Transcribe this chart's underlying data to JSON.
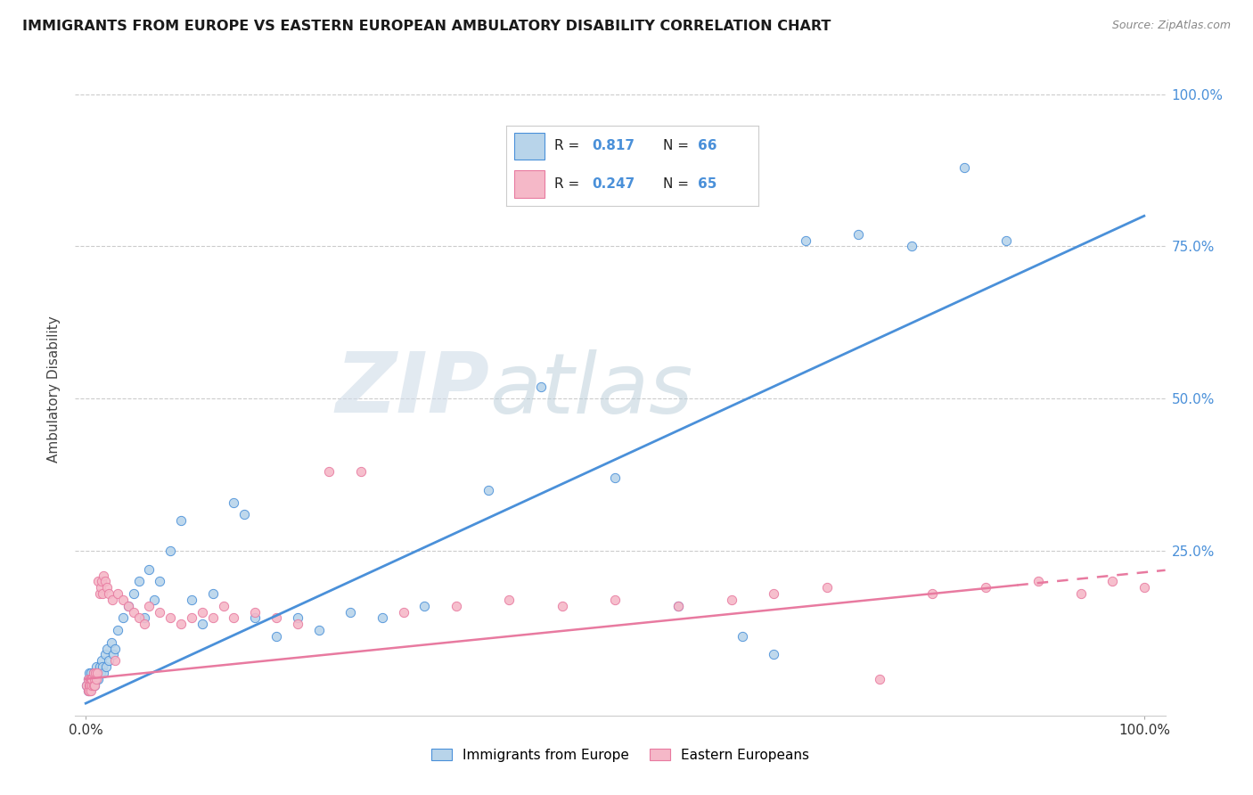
{
  "title": "IMMIGRANTS FROM EUROPE VS EASTERN EUROPEAN AMBULATORY DISABILITY CORRELATION CHART",
  "source": "Source: ZipAtlas.com",
  "ylabel": "Ambulatory Disability",
  "legend_label1": "Immigrants from Europe",
  "legend_label2": "Eastern Europeans",
  "r1": "0.817",
  "n1": "66",
  "r2": "0.247",
  "n2": "65",
  "color_blue": "#b8d4ea",
  "color_pink": "#f5b8c8",
  "line_color_blue": "#4a90d9",
  "line_color_pink": "#e87aa0",
  "text_color_blue": "#4a90d9",
  "watermark_zip": "ZIP",
  "watermark_atlas": "atlas",
  "blue_slope": 0.8,
  "blue_intercept": 0.0,
  "pink_slope": 0.175,
  "pink_intercept": 0.04,
  "blue_points_x": [
    0.001,
    0.002,
    0.002,
    0.003,
    0.003,
    0.004,
    0.004,
    0.005,
    0.005,
    0.006,
    0.006,
    0.007,
    0.007,
    0.008,
    0.008,
    0.009,
    0.01,
    0.01,
    0.011,
    0.012,
    0.013,
    0.014,
    0.015,
    0.016,
    0.017,
    0.018,
    0.019,
    0.02,
    0.022,
    0.024,
    0.026,
    0.028,
    0.03,
    0.035,
    0.04,
    0.045,
    0.05,
    0.055,
    0.06,
    0.065,
    0.07,
    0.08,
    0.09,
    0.1,
    0.11,
    0.12,
    0.14,
    0.15,
    0.16,
    0.18,
    0.2,
    0.22,
    0.25,
    0.28,
    0.32,
    0.38,
    0.43,
    0.5,
    0.56,
    0.62,
    0.65,
    0.68,
    0.73,
    0.78,
    0.83,
    0.87
  ],
  "blue_points_y": [
    0.03,
    0.02,
    0.04,
    0.03,
    0.05,
    0.02,
    0.04,
    0.03,
    0.05,
    0.03,
    0.04,
    0.03,
    0.05,
    0.04,
    0.03,
    0.05,
    0.04,
    0.06,
    0.05,
    0.04,
    0.06,
    0.05,
    0.07,
    0.06,
    0.05,
    0.08,
    0.06,
    0.09,
    0.07,
    0.1,
    0.08,
    0.09,
    0.12,
    0.14,
    0.16,
    0.18,
    0.2,
    0.14,
    0.22,
    0.17,
    0.2,
    0.25,
    0.3,
    0.17,
    0.13,
    0.18,
    0.33,
    0.31,
    0.14,
    0.11,
    0.14,
    0.12,
    0.15,
    0.14,
    0.16,
    0.35,
    0.52,
    0.37,
    0.16,
    0.11,
    0.08,
    0.76,
    0.77,
    0.75,
    0.88,
    0.76
  ],
  "pink_points_x": [
    0.001,
    0.002,
    0.002,
    0.003,
    0.003,
    0.004,
    0.004,
    0.005,
    0.005,
    0.006,
    0.006,
    0.007,
    0.007,
    0.008,
    0.008,
    0.009,
    0.01,
    0.011,
    0.012,
    0.013,
    0.014,
    0.015,
    0.016,
    0.017,
    0.018,
    0.02,
    0.022,
    0.025,
    0.028,
    0.03,
    0.035,
    0.04,
    0.045,
    0.05,
    0.055,
    0.06,
    0.07,
    0.08,
    0.09,
    0.1,
    0.11,
    0.12,
    0.13,
    0.14,
    0.16,
    0.18,
    0.2,
    0.23,
    0.26,
    0.3,
    0.35,
    0.4,
    0.45,
    0.5,
    0.56,
    0.61,
    0.65,
    0.7,
    0.75,
    0.8,
    0.85,
    0.9,
    0.94,
    0.97,
    1.0
  ],
  "pink_points_y": [
    0.03,
    0.02,
    0.04,
    0.03,
    0.02,
    0.04,
    0.03,
    0.04,
    0.02,
    0.03,
    0.04,
    0.03,
    0.05,
    0.04,
    0.03,
    0.05,
    0.04,
    0.05,
    0.2,
    0.18,
    0.19,
    0.2,
    0.18,
    0.21,
    0.2,
    0.19,
    0.18,
    0.17,
    0.07,
    0.18,
    0.17,
    0.16,
    0.15,
    0.14,
    0.13,
    0.16,
    0.15,
    0.14,
    0.13,
    0.14,
    0.15,
    0.14,
    0.16,
    0.14,
    0.15,
    0.14,
    0.13,
    0.38,
    0.38,
    0.15,
    0.16,
    0.17,
    0.16,
    0.17,
    0.16,
    0.17,
    0.18,
    0.19,
    0.04,
    0.18,
    0.19,
    0.2,
    0.18,
    0.2,
    0.19
  ]
}
